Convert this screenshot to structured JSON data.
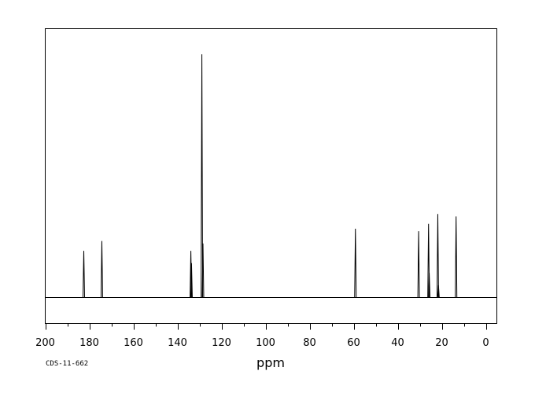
{
  "chart_data": {
    "type": "line",
    "spectrum": "NMR",
    "xlabel": "ppm",
    "ylabel": "",
    "xlim": [
      200,
      -5
    ],
    "x_reversed": true,
    "ylim": [
      -0.1,
      1.0
    ],
    "grid": false,
    "x_ticks": [
      200,
      180,
      160,
      140,
      120,
      100,
      80,
      60,
      40,
      20,
      0
    ],
    "x_minor_step": 10,
    "peaks": [
      {
        "ppm": 182.5,
        "intensity": 0.19
      },
      {
        "ppm": 174.3,
        "intensity": 0.23
      },
      {
        "ppm": 133.9,
        "intensity": 0.19
      },
      {
        "ppm": 133.6,
        "intensity": 0.14
      },
      {
        "ppm": 128.9,
        "intensity": 0.99
      },
      {
        "ppm": 128.4,
        "intensity": 0.22
      },
      {
        "ppm": 59.2,
        "intensity": 0.28
      },
      {
        "ppm": 30.5,
        "intensity": 0.27
      },
      {
        "ppm": 26.0,
        "intensity": 0.3
      },
      {
        "ppm": 25.7,
        "intensity": 0.1
      },
      {
        "ppm": 21.8,
        "intensity": 0.34
      },
      {
        "ppm": 21.5,
        "intensity": 0.05
      },
      {
        "ppm": 13.5,
        "intensity": 0.33
      }
    ],
    "line_color": "#000000"
  },
  "footer": {
    "code": "CDS-11-662"
  }
}
